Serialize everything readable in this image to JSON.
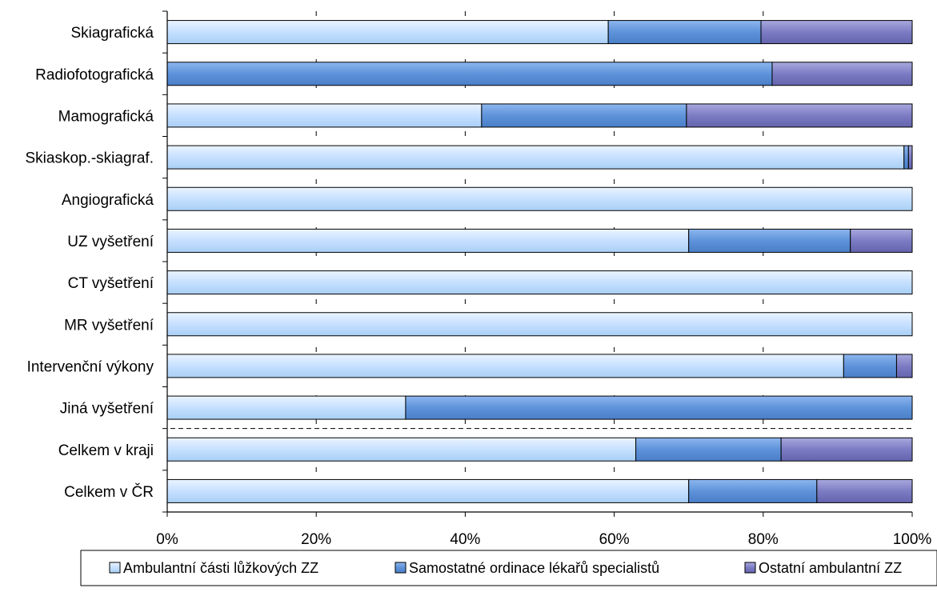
{
  "chart_data": {
    "type": "bar",
    "orientation": "horizontal",
    "stacked": "percent",
    "categories": [
      "Skiagrafická",
      "Radiofotografická",
      "Mamografická",
      "Skiaskop.-skiagraf.",
      "Angiografická",
      "UZ vyšetření",
      "CT vyšetření",
      "MR vyšetření",
      "Intervenční výkony",
      "Jiná vyšetření",
      "Celkem v kraji",
      "Celkem v ČR"
    ],
    "series": [
      {
        "name": "Ambulantní části lůžkových ZZ",
        "color": "#CCE5FF",
        "values": [
          59.2,
          0,
          42.2,
          98.9,
          100,
          70,
          100,
          100,
          90.8,
          32,
          62.9,
          70
        ]
      },
      {
        "name": "Samostatné ordinace lékařů specialistů",
        "color": "#6699DD",
        "values": [
          20.5,
          81.2,
          27.5,
          0.6,
          0,
          21.7,
          0,
          0,
          7.1,
          68,
          19.5,
          17.2
        ]
      },
      {
        "name": "Ostatní ambulantní ZZ",
        "color": "#8888CC",
        "values": [
          20.3,
          18.8,
          30.3,
          0.5,
          0,
          8.3,
          0,
          0,
          2.1,
          0,
          17.6,
          12.8
        ]
      }
    ],
    "xlim": [
      0,
      100
    ],
    "xticks": [
      "0%",
      "20%",
      "40%",
      "60%",
      "80%",
      "100%"
    ],
    "grid": "vertical-dashed",
    "separator_after_index": 9,
    "legend_position": "bottom",
    "title": "",
    "xlabel": "",
    "ylabel": ""
  }
}
